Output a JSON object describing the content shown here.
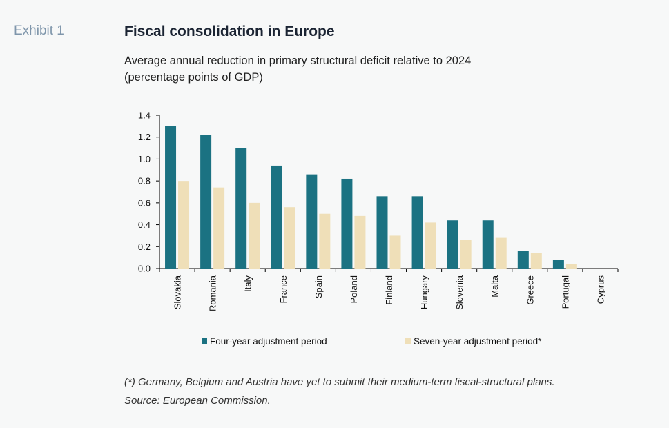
{
  "header": {
    "exhibit": "Exhibit 1",
    "title": "Fiscal consolidation in Europe",
    "subtitle_line1": "Average annual reduction in primary structural deficit relative to 2024",
    "subtitle_line2": "(percentage points of GDP)"
  },
  "chart_data": {
    "type": "bar",
    "categories": [
      "Slovakia",
      "Romania",
      "Italy",
      "France",
      "Spain",
      "Poland",
      "Finland",
      "Hungary",
      "Slovenia",
      "Malta",
      "Greece",
      "Portugal",
      "Cyprus"
    ],
    "series": [
      {
        "name": "Four-year adjustment period",
        "color": "#1b7282",
        "values": [
          1.3,
          1.22,
          1.1,
          0.94,
          0.86,
          0.82,
          0.66,
          0.66,
          0.44,
          0.44,
          0.16,
          0.08,
          0.0
        ]
      },
      {
        "name": "Seven-year adjustment period*",
        "color": "#efdfb8",
        "values": [
          0.8,
          0.74,
          0.6,
          0.56,
          0.5,
          0.48,
          0.3,
          0.42,
          0.26,
          0.28,
          0.14,
          0.04,
          0.0
        ]
      }
    ],
    "ylim": [
      0,
      1.4
    ],
    "yticks": [
      "0.0",
      "0.2",
      "0.4",
      "0.6",
      "0.8",
      "1.0",
      "1.2",
      "1.4"
    ],
    "legend_position": "bottom",
    "grid": false
  },
  "footnotes": {
    "note": "(*) Germany, Belgium and Austria have yet to submit their medium-term fiscal-structural plans.",
    "source": "Source: European Commission."
  }
}
